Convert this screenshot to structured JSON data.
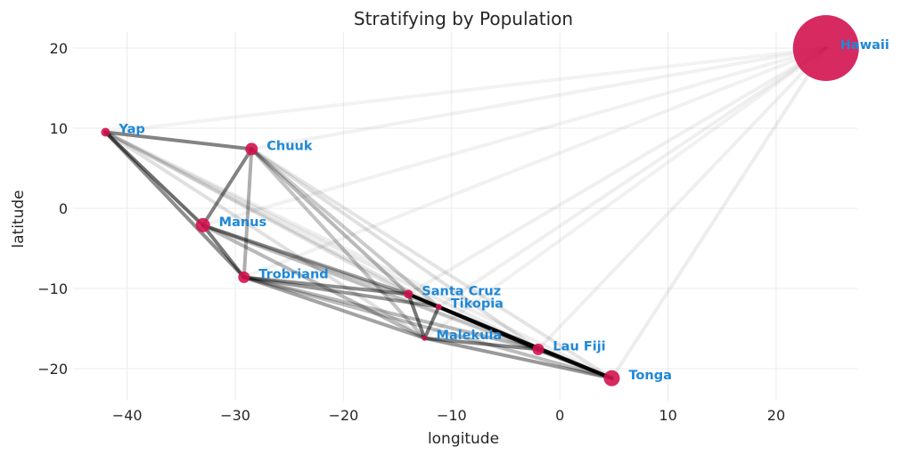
{
  "chart_data": {
    "type": "scatter",
    "title": "Stratifying by Population",
    "xlabel": "longitude",
    "ylabel": "latitude",
    "xlim": [
      -45,
      27.5
    ],
    "ylim": [
      -24,
      22
    ],
    "xticks": [
      -40,
      -30,
      -20,
      -10,
      0,
      10,
      20
    ],
    "yticks": [
      -20,
      -10,
      0,
      10,
      20
    ],
    "grid": true,
    "point_color": "#d1134f",
    "label_color": "#1e88d8",
    "points": [
      {
        "name": "Yap",
        "x": -42.0,
        "y": 9.5,
        "size": 5
      },
      {
        "name": "Chuuk",
        "x": -28.5,
        "y": 7.4,
        "size": 7
      },
      {
        "name": "Manus",
        "x": -33.0,
        "y": -2.1,
        "size": 8
      },
      {
        "name": "Trobriand",
        "x": -29.2,
        "y": -8.6,
        "size": 6.5
      },
      {
        "name": "Santa Cruz",
        "x": -14.0,
        "y": -10.7,
        "size": 5
      },
      {
        "name": "Tikopia",
        "x": -11.2,
        "y": -12.3,
        "size": 3.5
      },
      {
        "name": "Malekula",
        "x": -12.5,
        "y": -16.2,
        "size": 3
      },
      {
        "name": "Lau Fiji",
        "x": -2.0,
        "y": -17.6,
        "size": 6.5
      },
      {
        "name": "Tonga",
        "x": 4.8,
        "y": -21.2,
        "size": 9
      },
      {
        "name": "Hawaii",
        "x": 24.6,
        "y": 20.0,
        "size": 37
      }
    ],
    "edges": [
      {
        "from": "Yap",
        "to": "Chuuk",
        "strength": 0.55
      },
      {
        "from": "Yap",
        "to": "Manus",
        "strength": 0.65
      },
      {
        "from": "Yap",
        "to": "Trobriand",
        "strength": 0.5
      },
      {
        "from": "Yap",
        "to": "Santa Cruz",
        "strength": 0.12
      },
      {
        "from": "Yap",
        "to": "Tikopia",
        "strength": 0.1
      },
      {
        "from": "Yap",
        "to": "Malekula",
        "strength": 0.12
      },
      {
        "from": "Yap",
        "to": "Lau Fiji",
        "strength": 0.08
      },
      {
        "from": "Yap",
        "to": "Tonga",
        "strength": 0.06
      },
      {
        "from": "Yap",
        "to": "Hawaii",
        "strength": 0.03
      },
      {
        "from": "Chuuk",
        "to": "Manus",
        "strength": 0.55
      },
      {
        "from": "Chuuk",
        "to": "Trobriand",
        "strength": 0.35
      },
      {
        "from": "Chuuk",
        "to": "Santa Cruz",
        "strength": 0.3
      },
      {
        "from": "Chuuk",
        "to": "Tikopia",
        "strength": 0.22
      },
      {
        "from": "Chuuk",
        "to": "Malekula",
        "strength": 0.25
      },
      {
        "from": "Chuuk",
        "to": "Lau Fiji",
        "strength": 0.12
      },
      {
        "from": "Chuuk",
        "to": "Tonga",
        "strength": 0.1
      },
      {
        "from": "Chuuk",
        "to": "Hawaii",
        "strength": 0.04
      },
      {
        "from": "Manus",
        "to": "Trobriand",
        "strength": 0.6
      },
      {
        "from": "Manus",
        "to": "Santa Cruz",
        "strength": 0.4
      },
      {
        "from": "Manus",
        "to": "Tikopia",
        "strength": 0.25
      },
      {
        "from": "Manus",
        "to": "Malekula",
        "strength": 0.3
      },
      {
        "from": "Manus",
        "to": "Lau Fiji",
        "strength": 0.15
      },
      {
        "from": "Manus",
        "to": "Tonga",
        "strength": 0.12
      },
      {
        "from": "Manus",
        "to": "Hawaii",
        "strength": 0.04
      },
      {
        "from": "Trobriand",
        "to": "Santa Cruz",
        "strength": 0.5
      },
      {
        "from": "Trobriand",
        "to": "Tikopia",
        "strength": 0.45
      },
      {
        "from": "Trobriand",
        "to": "Malekula",
        "strength": 0.4
      },
      {
        "from": "Trobriand",
        "to": "Lau Fiji",
        "strength": 0.3
      },
      {
        "from": "Trobriand",
        "to": "Tonga",
        "strength": 0.28
      },
      {
        "from": "Trobriand",
        "to": "Hawaii",
        "strength": 0.04
      },
      {
        "from": "Santa Cruz",
        "to": "Tikopia",
        "strength": 0.95
      },
      {
        "from": "Santa Cruz",
        "to": "Malekula",
        "strength": 0.6
      },
      {
        "from": "Santa Cruz",
        "to": "Lau Fiji",
        "strength": 0.7
      },
      {
        "from": "Santa Cruz",
        "to": "Tonga",
        "strength": 0.5
      },
      {
        "from": "Santa Cruz",
        "to": "Hawaii",
        "strength": 0.05
      },
      {
        "from": "Tikopia",
        "to": "Malekula",
        "strength": 0.6
      },
      {
        "from": "Tikopia",
        "to": "Lau Fiji",
        "strength": 0.85
      },
      {
        "from": "Tikopia",
        "to": "Tonga",
        "strength": 0.95
      },
      {
        "from": "Tikopia",
        "to": "Hawaii",
        "strength": 0.05
      },
      {
        "from": "Malekula",
        "to": "Lau Fiji",
        "strength": 0.55
      },
      {
        "from": "Malekula",
        "to": "Tonga",
        "strength": 0.45
      },
      {
        "from": "Malekula",
        "to": "Hawaii",
        "strength": 0.04
      },
      {
        "from": "Lau Fiji",
        "to": "Tonga",
        "strength": 0.9
      },
      {
        "from": "Lau Fiji",
        "to": "Hawaii",
        "strength": 0.05
      },
      {
        "from": "Tonga",
        "to": "Hawaii",
        "strength": 0.06
      }
    ]
  }
}
